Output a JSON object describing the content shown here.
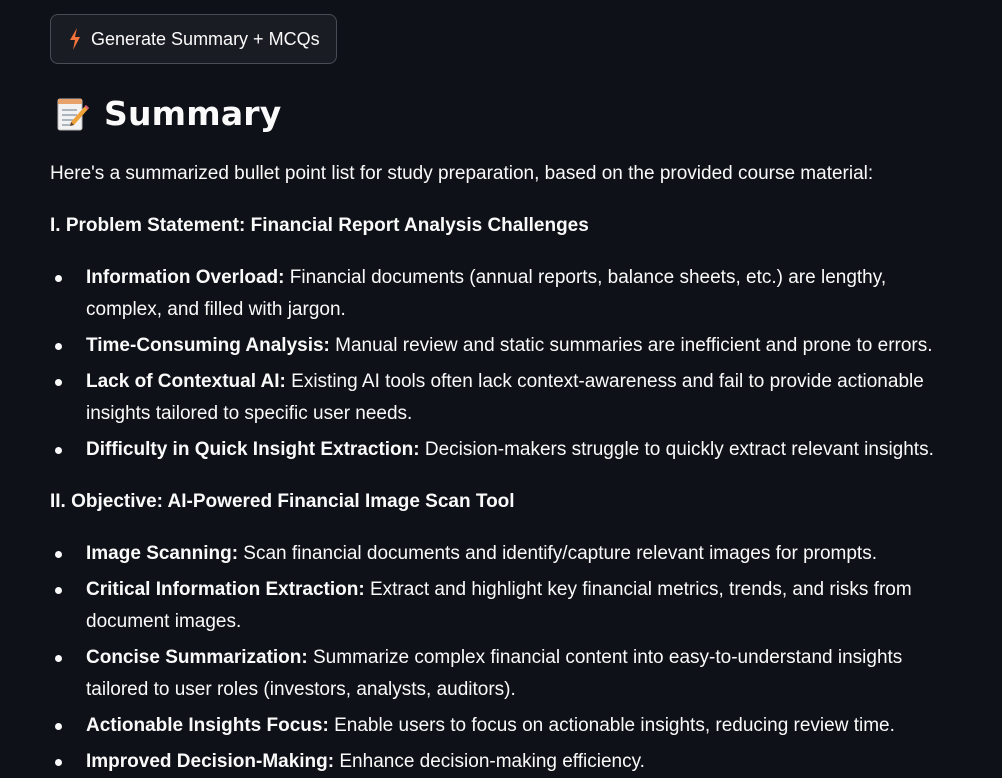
{
  "generate_button": {
    "icon": "lightning-bolt-icon",
    "label": "Generate Summary + MCQs",
    "icon_color": "#f3733a"
  },
  "summary": {
    "icon": "memo-icon",
    "title": "Summary",
    "intro": "Here's a summarized bullet point list for study preparation, based on the provided course material:",
    "sections": [
      {
        "title": "I. Problem Statement: Financial Report Analysis Challenges",
        "items": [
          {
            "term": "Information Overload:",
            "text": " Financial documents (annual reports, balance sheets, etc.) are lengthy, complex, and filled with jargon."
          },
          {
            "term": "Time-Consuming Analysis:",
            "text": " Manual review and static summaries are inefficient and prone to errors."
          },
          {
            "term": "Lack of Contextual AI:",
            "text": " Existing AI tools often lack context-awareness and fail to provide actionable insights tailored to specific user needs."
          },
          {
            "term": "Difficulty in Quick Insight Extraction:",
            "text": " Decision-makers struggle to quickly extract relevant insights."
          }
        ]
      },
      {
        "title": "II. Objective: AI-Powered Financial Image Scan Tool",
        "items": [
          {
            "term": "Image Scanning:",
            "text": " Scan financial documents and identify/capture relevant images for prompts."
          },
          {
            "term": "Critical Information Extraction:",
            "text": " Extract and highlight key financial metrics, trends, and risks from document images."
          },
          {
            "term": "Concise Summarization:",
            "text": " Summarize complex financial content into easy-to-understand insights tailored to user roles (investors, analysts, auditors)."
          },
          {
            "term": "Actionable Insights Focus:",
            "text": " Enable users to focus on actionable insights, reducing review time."
          },
          {
            "term": "Improved Decision-Making:",
            "text": " Enhance decision-making efficiency."
          }
        ]
      }
    ]
  }
}
